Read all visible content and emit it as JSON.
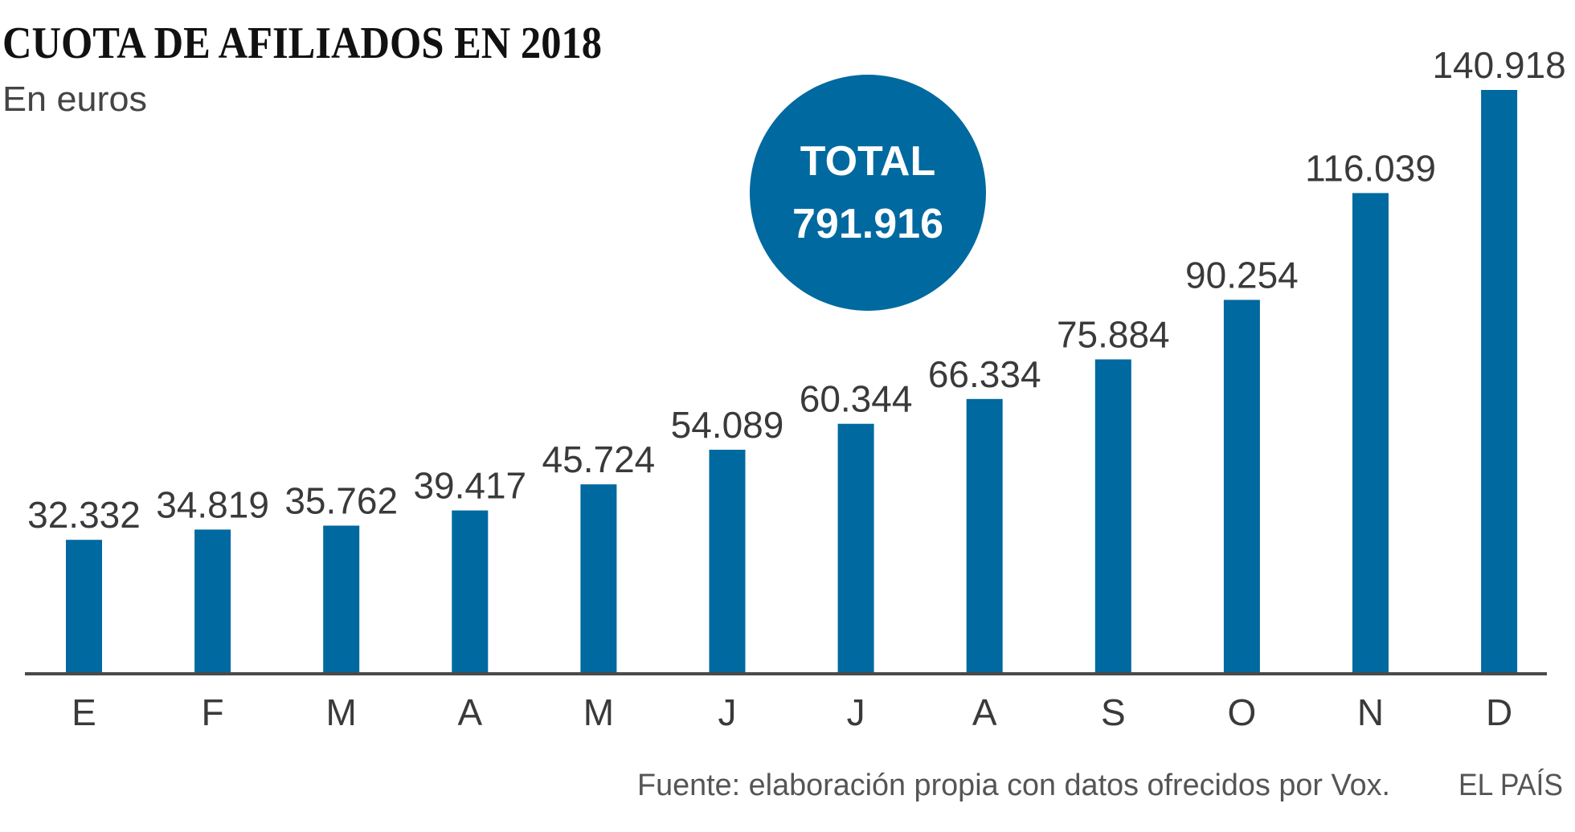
{
  "chart_data": {
    "type": "bar",
    "title": "CUOTA DE AFILIADOS EN 2018",
    "subtitle": "En euros",
    "xlabel": "",
    "ylabel": "",
    "categories": [
      "E",
      "F",
      "M",
      "A",
      "M",
      "J",
      "J",
      "A",
      "S",
      "O",
      "N",
      "D"
    ],
    "values": [
      32332,
      34819,
      35762,
      39417,
      45724,
      54089,
      60344,
      66334,
      75884,
      90254,
      116039,
      140918
    ],
    "value_labels": [
      "32.332",
      "34.819",
      "35.762",
      "39.417",
      "45.724",
      "54.089",
      "60.344",
      "66.334",
      "75.884",
      "90.254",
      "116.039",
      "140.918"
    ],
    "ylim": [
      0,
      140918
    ],
    "grid": false,
    "legend": "none",
    "annotation": {
      "label": "TOTAL",
      "value": "791.916"
    },
    "source": "Fuente: elaboración propia con datos ofrecidos por Vox.",
    "credit": "EL PAÍS"
  },
  "colors": {
    "bar": "#00699f",
    "circle": "#00699f",
    "axis": "#4a4a4a"
  }
}
